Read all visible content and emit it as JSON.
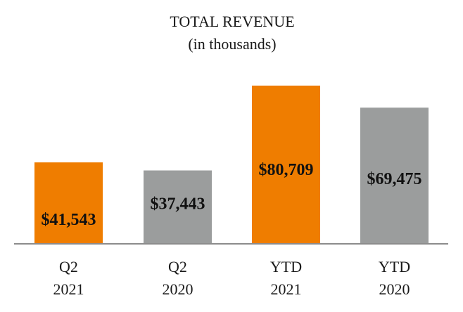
{
  "chart_data": {
    "type": "bar",
    "title": "TOTAL REVENUE",
    "subtitle": "(in thousands)",
    "categories": [
      [
        "Q2",
        "2021"
      ],
      [
        "Q2",
        "2020"
      ],
      [
        "YTD",
        "2021"
      ],
      [
        "YTD",
        "2020"
      ]
    ],
    "values": [
      41543,
      37443,
      80709,
      69475
    ],
    "data_labels": [
      "$41,543",
      "$37,443",
      "$80,709",
      "$69,475"
    ],
    "bar_colors": [
      "#ef7d00",
      "#9b9d9d",
      "#ef7d00",
      "#9b9d9d"
    ],
    "ylim": [
      0,
      100000
    ],
    "grid": false,
    "legend": "none"
  }
}
